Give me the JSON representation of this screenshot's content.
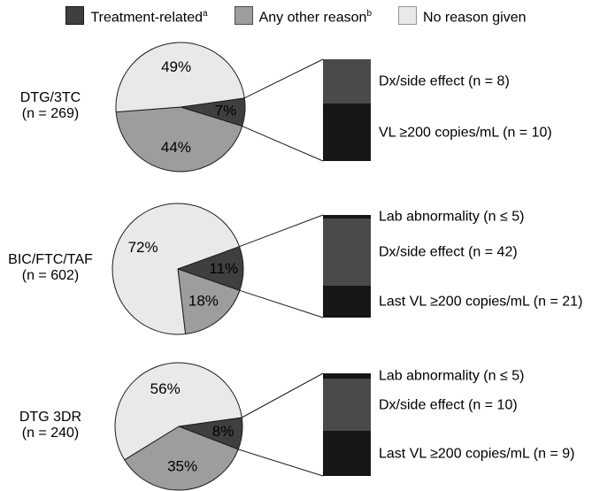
{
  "legend": {
    "items": [
      {
        "label": "Treatment-related",
        "sup": "a",
        "color": "#3f3f3f",
        "border": "#1a1a1a"
      },
      {
        "label": "Any other reason",
        "sup": "b",
        "color": "#9d9d9d",
        "border": "#4d4d4d"
      },
      {
        "label": "No reason given",
        "sup": "",
        "color": "#e9e9e9",
        "border": "#929292"
      }
    ]
  },
  "colors": {
    "treatment": "#3f3f3f",
    "other": "#9d9d9d",
    "none": "#e9e9e9",
    "bar_gray": "#4a4a4a",
    "bar_black": "#161616",
    "outline": "#1c1c1c",
    "text": "#000000"
  },
  "chart_data": {
    "type": "pie",
    "title": "",
    "legend_position": "top",
    "categories": [
      "Treatment-related",
      "Any other reason",
      "No reason given"
    ],
    "groups": [
      {
        "group": "DTG/3TC",
        "n_label": "(n = 269)",
        "slices": [
          {
            "category": "Treatment-related",
            "pct": 7,
            "pct_label": "7%"
          },
          {
            "category": "Any other reason",
            "pct": 44,
            "pct_label": "44%"
          },
          {
            "category": "No reason given",
            "pct": 49,
            "pct_label": "49%"
          }
        ],
        "breakout": [
          {
            "label": "Dx/side effect (n = 8)",
            "n": 8,
            "shade": "gray"
          },
          {
            "label": "VL ≥200 copies/mL (n = 10)",
            "n": 10,
            "shade": "black"
          }
        ]
      },
      {
        "group": "BIC/FTC/TAF",
        "n_label": "(n = 602)",
        "slices": [
          {
            "category": "Treatment-related",
            "pct": 11,
            "pct_label": "11%"
          },
          {
            "category": "Any other reason",
            "pct": 18,
            "pct_label": "18%"
          },
          {
            "category": "No reason given",
            "pct": 72,
            "pct_label": "72%"
          }
        ],
        "breakout": [
          {
            "label": "Lab abnormality (n ≤ 5)",
            "n": 5,
            "shade": "black"
          },
          {
            "label": "Dx/side effect (n = 42)",
            "n": 42,
            "shade": "gray"
          },
          {
            "label": "Last VL ≥200 copies/mL (n = 21)",
            "n": 21,
            "shade": "black"
          }
        ]
      },
      {
        "group": "DTG 3DR",
        "n_label": "(n = 240)",
        "slices": [
          {
            "category": "Treatment-related",
            "pct": 8,
            "pct_label": "8%"
          },
          {
            "category": "Any other reason",
            "pct": 35,
            "pct_label": "35%"
          },
          {
            "category": "No reason given",
            "pct": 56,
            "pct_label": "56%"
          }
        ],
        "breakout": [
          {
            "label": "Lab abnormality (n ≤ 5)",
            "n": 5,
            "shade": "black"
          },
          {
            "label": "Dx/side effect (n = 10)",
            "n": 10,
            "shade": "gray"
          },
          {
            "label": "Last VL ≥200 copies/mL (n = 9)",
            "n": 9,
            "shade": "black"
          }
        ]
      }
    ]
  }
}
